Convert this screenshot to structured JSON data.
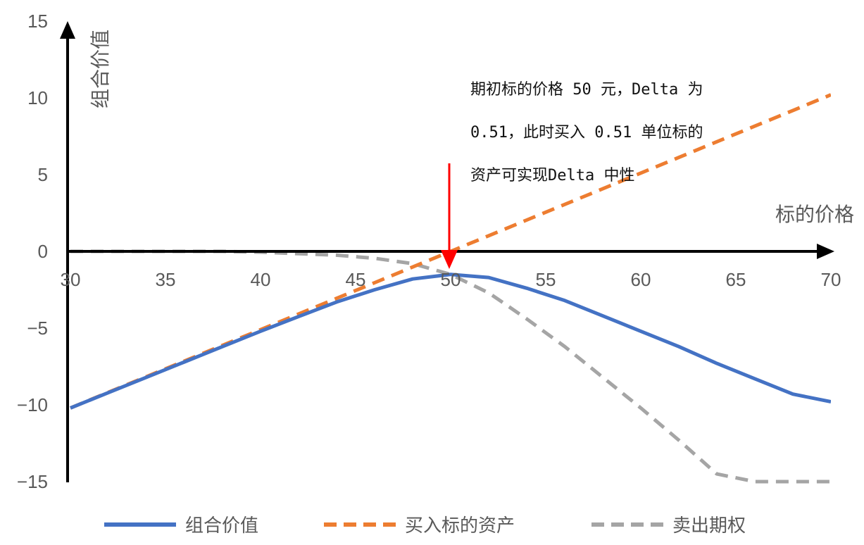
{
  "chart_data": {
    "type": "line",
    "title": "",
    "xlabel": "标的价格",
    "ylabel": "组合价值",
    "xlim": [
      30,
      70
    ],
    "ylim": [
      -15,
      15
    ],
    "x_ticks": [
      "30",
      "35",
      "40",
      "45",
      "50",
      "55",
      "60",
      "65",
      "70"
    ],
    "y_ticks": [
      "15",
      "10",
      "5",
      "0",
      "-5",
      "-10",
      "-15"
    ],
    "grid": false,
    "legend_position": "bottom",
    "x": [
      30,
      32,
      34,
      36,
      38,
      40,
      42,
      44,
      46,
      48,
      50,
      52,
      54,
      56,
      58,
      60,
      62,
      64,
      66,
      68,
      70
    ],
    "series": [
      {
        "name": "组合价值",
        "color": "#4472c4",
        "style": "solid",
        "values": [
          -10.2,
          -9.2,
          -8.2,
          -7.2,
          -6.2,
          -5.2,
          -4.25,
          -3.3,
          -2.5,
          -1.8,
          -1.5,
          -1.7,
          -2.4,
          -3.2,
          -4.2,
          -5.2,
          -6.2,
          -7.3,
          -8.3,
          -9.3,
          -9.8
        ]
      },
      {
        "name": "买入标的资产",
        "color": "#ed7d31",
        "style": "dashed",
        "values": [
          -10.2,
          -9.18,
          -8.16,
          -7.14,
          -6.12,
          -5.1,
          -4.08,
          -3.06,
          -2.04,
          -1.02,
          0,
          1.02,
          2.04,
          3.06,
          4.08,
          5.1,
          6.12,
          7.14,
          8.16,
          9.18,
          10.2
        ]
      },
      {
        "name": "卖出期权",
        "color": "#a5a5a5",
        "style": "dashed",
        "values": [
          0,
          0,
          0,
          0,
          0,
          -0.05,
          -0.15,
          -0.25,
          -0.45,
          -0.8,
          -1.5,
          -2.7,
          -4.4,
          -6.2,
          -8.2,
          -10.2,
          -12.3,
          -14.5,
          -15,
          -15,
          -15
        ]
      }
    ],
    "annotations": [
      {
        "lines": [
          "期初标的价格 50 元，Delta 为",
          "0.51，此时买入 0.51 单位标的",
          "资产可实现Delta 中性"
        ],
        "arrow_at": [
          50,
          0
        ],
        "arrow_color": "#ff0000"
      }
    ]
  }
}
